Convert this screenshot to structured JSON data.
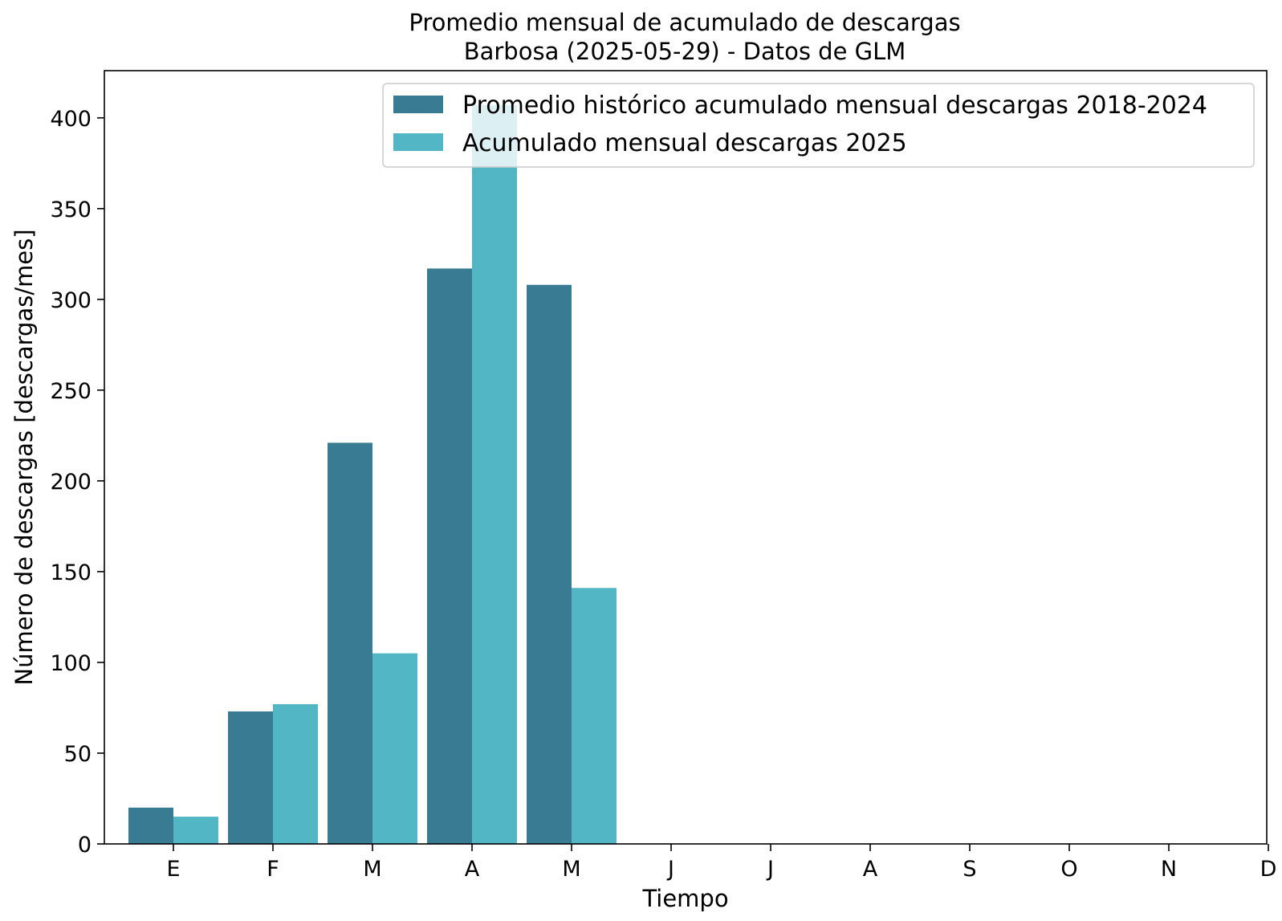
{
  "chart_data": {
    "type": "bar",
    "title": "Promedio mensual de acumulado de descargas",
    "subtitle": "Barbosa (2025-05-29) - Datos de GLM",
    "xlabel": "Tiempo",
    "ylabel": "Número de descargas [descargas/mes]",
    "categories": [
      "E",
      "F",
      "M",
      "A",
      "M",
      "J",
      "J",
      "A",
      "S",
      "O",
      "N",
      "D"
    ],
    "series": [
      {
        "name": "Promedio histórico acumulado mensual descargas 2018-2024",
        "color": "#3a7b94",
        "values": [
          20,
          73,
          221,
          317,
          308,
          null,
          null,
          null,
          null,
          null,
          null,
          null
        ]
      },
      {
        "name": "Acumulado mensual descargas 2025",
        "color": "#52b6c5",
        "values": [
          15,
          77,
          105,
          407,
          141,
          null,
          null,
          null,
          null,
          null,
          null,
          null
        ]
      }
    ],
    "ylim": [
      0,
      426
    ],
    "yticks": [
      0,
      50,
      100,
      150,
      200,
      250,
      300,
      350,
      400
    ],
    "grid": false,
    "legend_position": "top-right"
  }
}
